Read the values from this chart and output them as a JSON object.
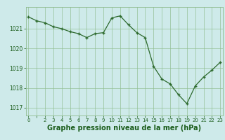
{
  "x": [
    0,
    1,
    2,
    3,
    4,
    5,
    6,
    7,
    8,
    9,
    10,
    11,
    12,
    13,
    14,
    15,
    16,
    17,
    18,
    19,
    20,
    21,
    22,
    23
  ],
  "y": [
    1021.6,
    1021.4,
    1021.3,
    1021.1,
    1021.0,
    1020.85,
    1020.75,
    1020.55,
    1020.75,
    1020.8,
    1021.55,
    1021.65,
    1021.2,
    1020.8,
    1020.55,
    1019.1,
    1018.45,
    1018.2,
    1017.65,
    1017.2,
    1018.1,
    1018.55,
    1018.9,
    1019.3
  ],
  "line_color": "#2d6a2d",
  "marker": "+",
  "marker_size": 3.5,
  "marker_linewidth": 1.0,
  "bg_color": "#ceeaea",
  "grid_color": "#8fbc8f",
  "xlabel": "Graphe pression niveau de la mer (hPa)",
  "xlabel_fontsize": 7,
  "xlabel_color": "#1a5c1a",
  "yticks": [
    1017,
    1018,
    1019,
    1020,
    1021
  ],
  "xtick_labels": [
    "0",
    "",
    "2",
    "3",
    "4",
    "5",
    "6",
    "7",
    "8",
    "9",
    "10",
    "11",
    "12",
    "13",
    "14",
    "15",
    "16",
    "17",
    "18",
    "19",
    "20",
    "21",
    "22",
    "23"
  ],
  "ylim": [
    1016.6,
    1022.1
  ],
  "xlim": [
    -0.3,
    23.3
  ],
  "ytick_fontsize": 5.5,
  "xtick_fontsize": 5.0,
  "tick_color": "#1a5c1a",
  "linewidth": 0.9
}
